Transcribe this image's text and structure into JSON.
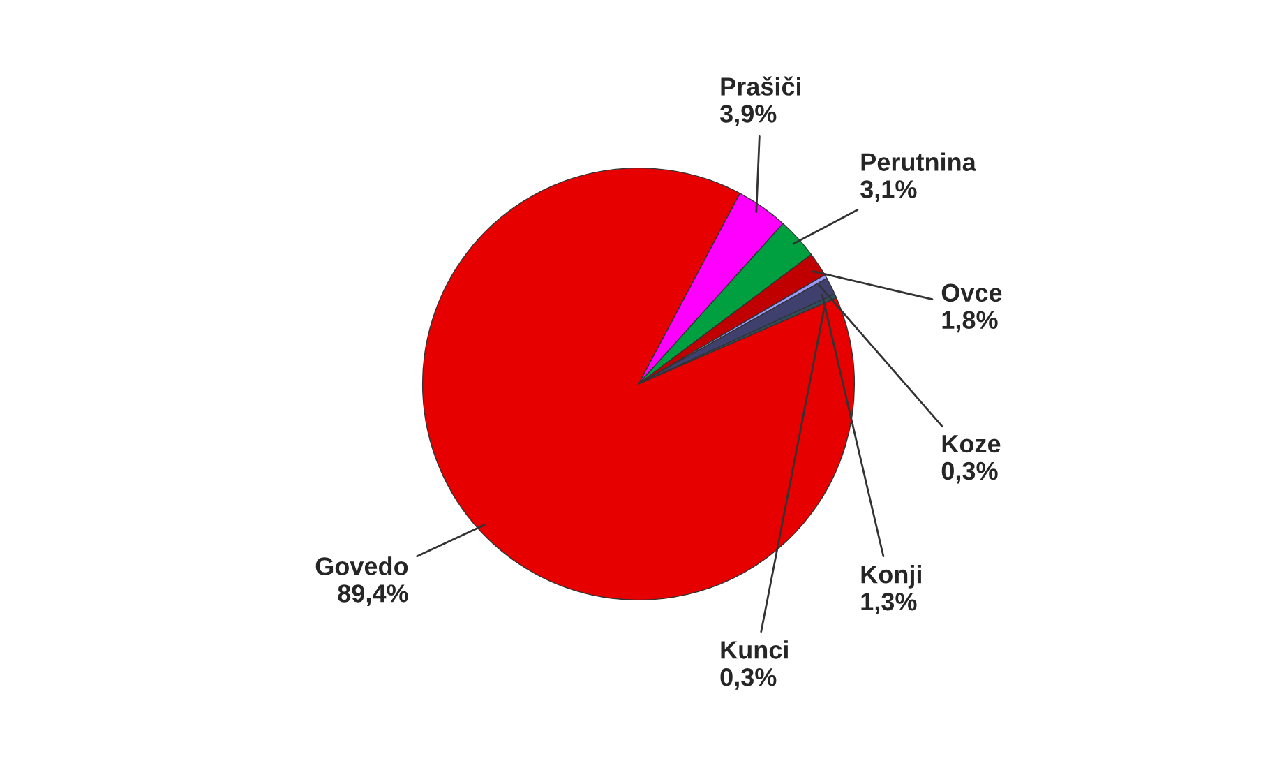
{
  "chart_data": {
    "type": "pie",
    "categories": [
      "Prašiči",
      "Perutnina",
      "Ovce",
      "Koze",
      "Konji",
      "Kunci",
      "Govedo"
    ],
    "values": [
      3.9,
      3.1,
      1.8,
      0.3,
      1.3,
      0.3,
      89.4
    ],
    "colors": [
      "#ff00ff",
      "#00a040",
      "#c00000",
      "#9999ff",
      "#40406e",
      "#2f4f5f",
      "#e60000"
    ],
    "value_labels": [
      "3,9%",
      "3,1%",
      "1,8%",
      "0,3%",
      "1,3%",
      "0,3%",
      "89,4%"
    ]
  }
}
